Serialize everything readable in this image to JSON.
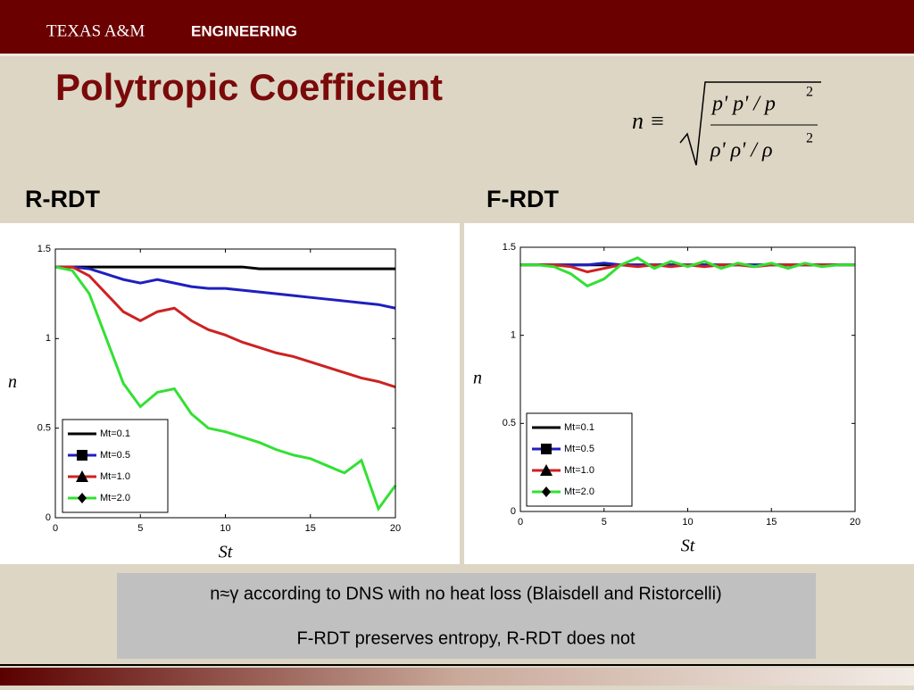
{
  "header": {
    "brand": "TEXAS A&M",
    "brand_bold": "ENGINEERING"
  },
  "title": "Polytropic Coefficient",
  "formula": {
    "lhs": "n ≡",
    "numerator": "p' p' / p",
    "denominator": "ρ' ρ' / ρ",
    "power": "2"
  },
  "chart_data": [
    {
      "type": "line",
      "title": "R-RDT",
      "x_label": "St",
      "y_label": "n",
      "x": [
        0,
        1,
        2,
        3,
        4,
        5,
        6,
        7,
        8,
        9,
        10,
        11,
        12,
        13,
        14,
        15,
        16,
        17,
        18,
        19,
        20
      ],
      "xlim": [
        0,
        20
      ],
      "xticks": [
        0,
        5,
        10,
        15,
        20
      ],
      "ylim": [
        0,
        1.5
      ],
      "yticks": [
        0,
        0.5,
        1,
        1.5
      ],
      "series": [
        {
          "name": "Mt=0.1",
          "color": "#000000",
          "values": [
            1.4,
            1.4,
            1.4,
            1.4,
            1.4,
            1.4,
            1.4,
            1.4,
            1.4,
            1.4,
            1.4,
            1.4,
            1.39,
            1.39,
            1.39,
            1.39,
            1.39,
            1.39,
            1.39,
            1.39,
            1.39
          ]
        },
        {
          "name": "Mt=0.5",
          "color": "#1f1fbf",
          "values": [
            1.4,
            1.4,
            1.39,
            1.36,
            1.33,
            1.31,
            1.33,
            1.31,
            1.29,
            1.28,
            1.28,
            1.27,
            1.26,
            1.25,
            1.24,
            1.23,
            1.22,
            1.21,
            1.2,
            1.19,
            1.17
          ]
        },
        {
          "name": "Mt=1.0",
          "color": "#cc2222",
          "values": [
            1.4,
            1.4,
            1.35,
            1.25,
            1.15,
            1.1,
            1.15,
            1.17,
            1.1,
            1.05,
            1.02,
            0.98,
            0.95,
            0.92,
            0.9,
            0.87,
            0.84,
            0.81,
            0.78,
            0.76,
            0.73
          ]
        },
        {
          "name": "Mt=2.0",
          "color": "#33e033",
          "values": [
            1.4,
            1.38,
            1.25,
            1.0,
            0.75,
            0.62,
            0.7,
            0.72,
            0.58,
            0.5,
            0.48,
            0.45,
            0.42,
            0.38,
            0.35,
            0.33,
            0.29,
            0.25,
            0.32,
            0.05,
            0.18
          ]
        }
      ]
    },
    {
      "type": "line",
      "title": "F-RDT",
      "x_label": "St",
      "y_label": "n",
      "x": [
        0,
        1,
        2,
        3,
        4,
        5,
        6,
        7,
        8,
        9,
        10,
        11,
        12,
        13,
        14,
        15,
        16,
        17,
        18,
        19,
        20
      ],
      "xlim": [
        0,
        20
      ],
      "xticks": [
        0,
        5,
        10,
        15,
        20
      ],
      "ylim": [
        0,
        1.5
      ],
      "yticks": [
        0,
        0.5,
        1,
        1.5
      ],
      "series": [
        {
          "name": "Mt=0.1",
          "color": "#000000",
          "values": [
            1.4,
            1.4,
            1.4,
            1.4,
            1.4,
            1.4,
            1.4,
            1.4,
            1.4,
            1.4,
            1.4,
            1.4,
            1.4,
            1.4,
            1.4,
            1.4,
            1.4,
            1.4,
            1.4,
            1.4,
            1.4
          ]
        },
        {
          "name": "Mt=0.5",
          "color": "#1f1fbf",
          "values": [
            1.4,
            1.4,
            1.4,
            1.4,
            1.4,
            1.41,
            1.4,
            1.4,
            1.4,
            1.4,
            1.4,
            1.4,
            1.4,
            1.4,
            1.4,
            1.4,
            1.4,
            1.4,
            1.4,
            1.4,
            1.4
          ]
        },
        {
          "name": "Mt=1.0",
          "color": "#cc2222",
          "values": [
            1.4,
            1.4,
            1.4,
            1.39,
            1.36,
            1.38,
            1.4,
            1.39,
            1.4,
            1.39,
            1.4,
            1.39,
            1.4,
            1.4,
            1.39,
            1.4,
            1.4,
            1.4,
            1.4,
            1.4,
            1.4
          ]
        },
        {
          "name": "Mt=2.0",
          "color": "#33e033",
          "values": [
            1.4,
            1.4,
            1.39,
            1.35,
            1.28,
            1.32,
            1.4,
            1.44,
            1.38,
            1.42,
            1.39,
            1.42,
            1.38,
            1.41,
            1.39,
            1.41,
            1.38,
            1.41,
            1.39,
            1.4,
            1.4
          ]
        }
      ]
    }
  ],
  "notes": [
    "n≈γ according to DNS with no heat loss (Blaisdell and Ristorcelli)",
    "F-RDT preserves entropy, R-RDT does not"
  ]
}
